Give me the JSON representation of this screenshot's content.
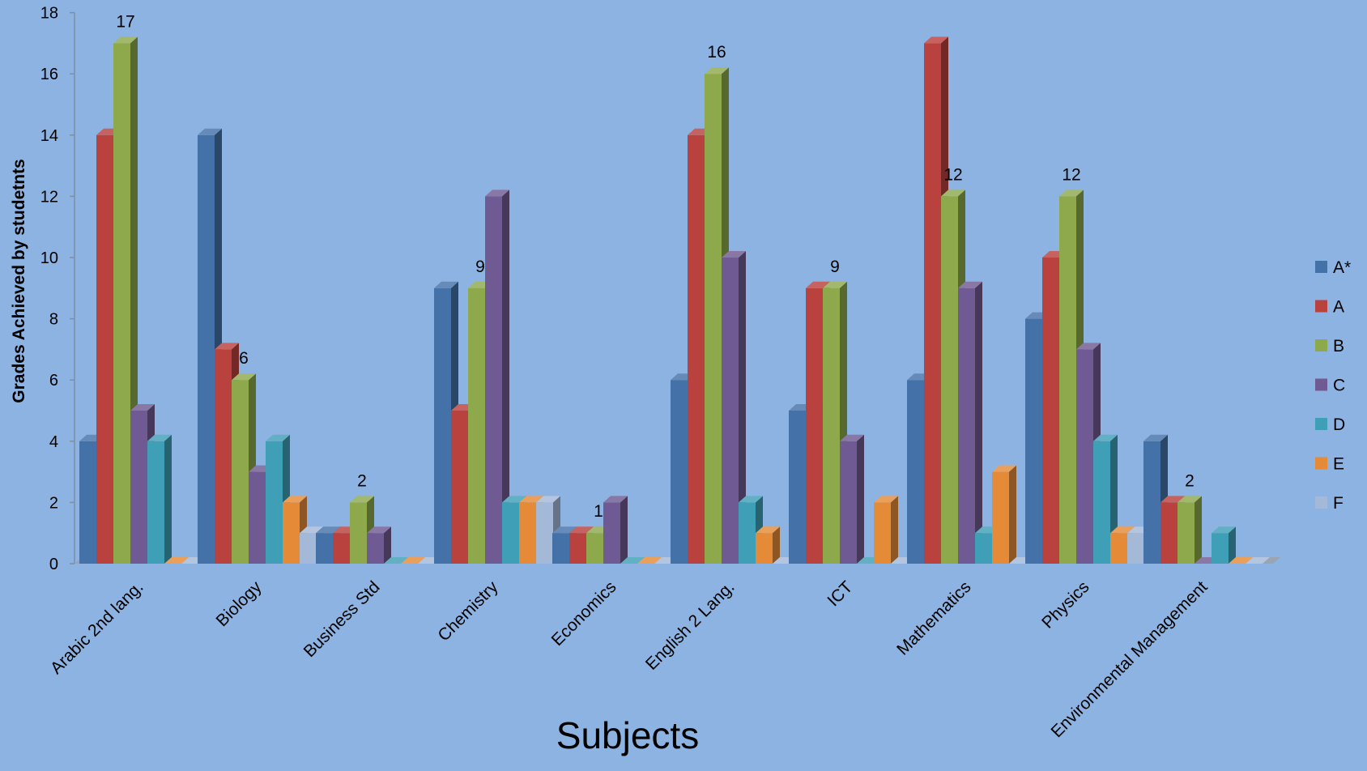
{
  "chart_data": {
    "type": "bar",
    "style": "3d-clustered-column",
    "title": "",
    "xlabel": "Subjects",
    "ylabel": "Grades Achieved by studetnts",
    "ylim": [
      0,
      18
    ],
    "yticks": [
      0,
      2,
      4,
      6,
      8,
      10,
      12,
      14,
      16,
      18
    ],
    "legend_position": "right",
    "grid": false,
    "categories": [
      "Arabic 2nd lang.",
      "Biology",
      "Business Std",
      "Chemistry",
      "Economics",
      "English 2 Lang.",
      "ICT",
      "Mathematics",
      "Physics",
      "Environmental Management"
    ],
    "series": [
      {
        "name": "A*",
        "color": "#4472a8",
        "values": [
          4,
          14,
          1,
          9,
          1,
          6,
          5,
          6,
          8,
          4
        ]
      },
      {
        "name": "A",
        "color": "#b9413e",
        "values": [
          14,
          7,
          1,
          5,
          1,
          14,
          9,
          17,
          10,
          2
        ]
      },
      {
        "name": "B",
        "color": "#8ea94c",
        "values": [
          17,
          6,
          2,
          9,
          1,
          16,
          9,
          12,
          12,
          2
        ]
      },
      {
        "name": "C",
        "color": "#6f5a93",
        "values": [
          5,
          3,
          1,
          12,
          2,
          10,
          4,
          9,
          7,
          0
        ]
      },
      {
        "name": "D",
        "color": "#3f9fb7",
        "values": [
          4,
          4,
          0,
          2,
          0,
          2,
          0,
          1,
          4,
          1
        ]
      },
      {
        "name": "E",
        "color": "#e58a37",
        "values": [
          0,
          2,
          0,
          2,
          0,
          1,
          2,
          3,
          1,
          0
        ]
      },
      {
        "name": "F",
        "color": "#a4b8d8",
        "values": [
          0,
          1,
          0,
          2,
          0,
          0,
          0,
          0,
          1,
          0
        ]
      }
    ],
    "data_labels": [
      {
        "category": "Arabic 2nd lang.",
        "series": "B",
        "text": "17"
      },
      {
        "category": "Biology",
        "series": "B",
        "text": "6"
      },
      {
        "category": "Business Std",
        "series": "B",
        "text": "2"
      },
      {
        "category": "Chemistry",
        "series": "B",
        "text": "9"
      },
      {
        "category": "Economics",
        "series": "B",
        "text": "1"
      },
      {
        "category": "English 2 Lang.",
        "series": "B",
        "text": "16"
      },
      {
        "category": "ICT",
        "series": "B",
        "text": "9"
      },
      {
        "category": "Mathematics",
        "series": "B",
        "text": "12"
      },
      {
        "category": "Physics",
        "series": "B",
        "text": "12"
      },
      {
        "category": "Environmental Management",
        "series": "B",
        "text": "2"
      }
    ]
  }
}
